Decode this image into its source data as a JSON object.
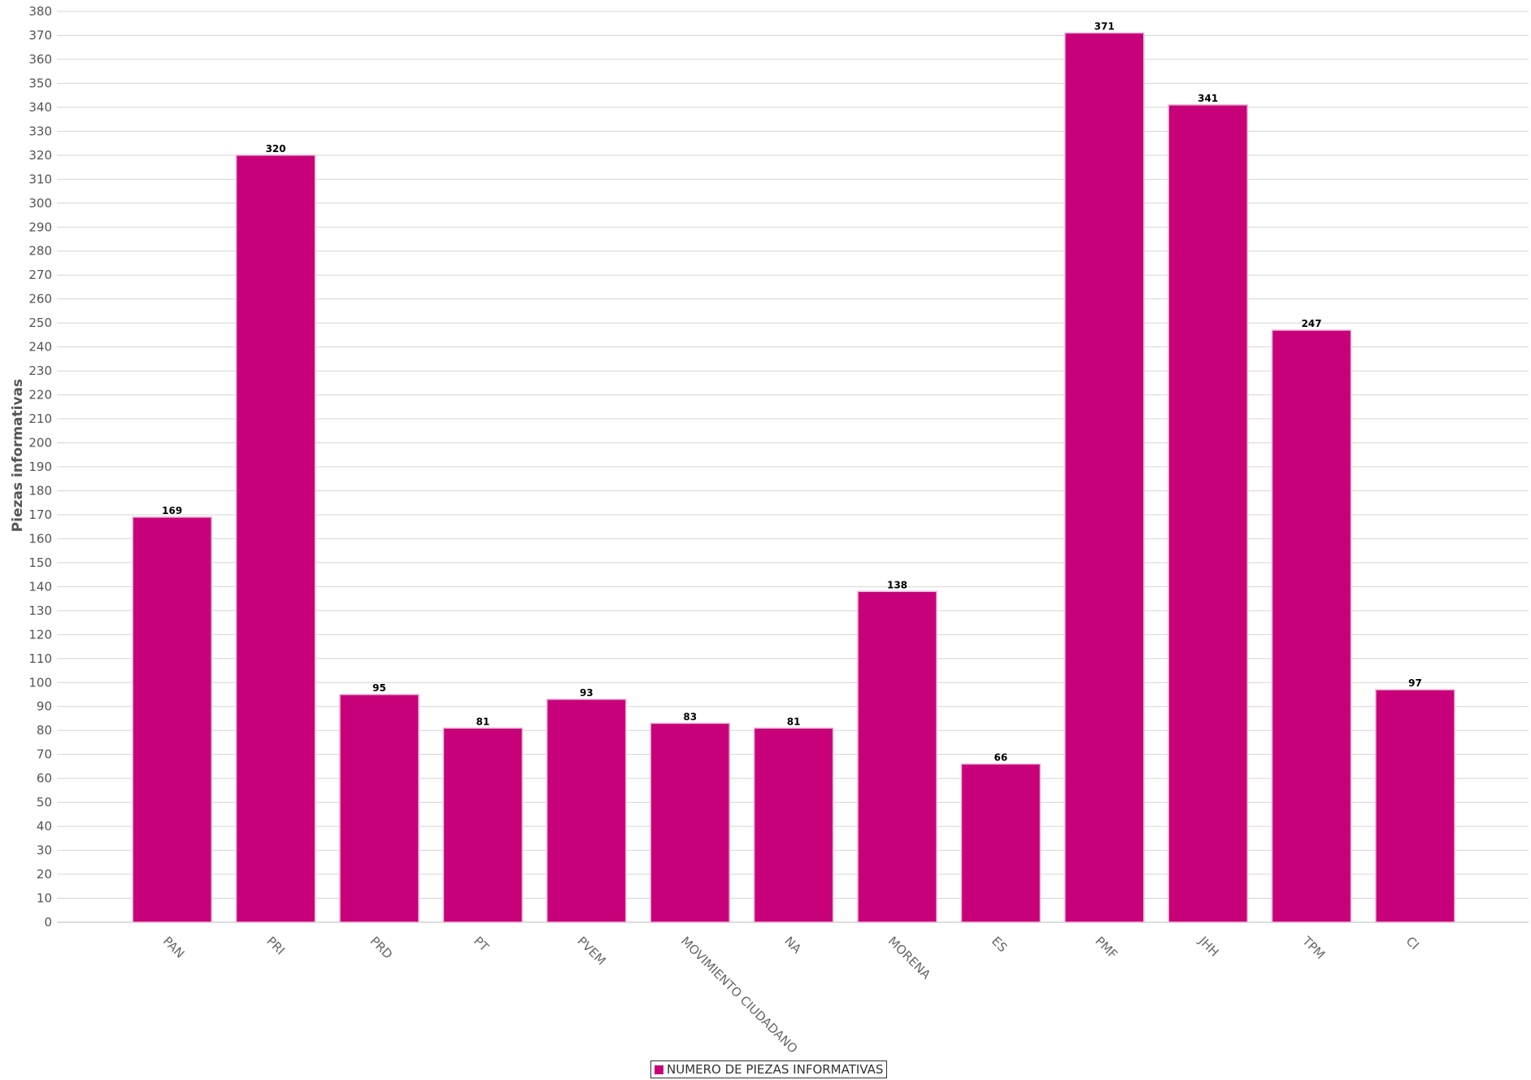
{
  "chart_data": {
    "type": "bar",
    "categories": [
      "PAN",
      "PRI",
      "PRD",
      "PT",
      "PVEM",
      "MOVIMIENTO CIUDADANO",
      "NA",
      "MORENA",
      "ES",
      "PMF",
      "JHH",
      "TPM",
      "CI"
    ],
    "series": [
      {
        "name": "NUMERO DE PIEZAS INFORMATIVAS",
        "color": "#c8007a",
        "values": [
          169,
          320,
          95,
          81,
          93,
          83,
          81,
          138,
          66,
          371,
          341,
          247,
          97
        ]
      }
    ],
    "title": "",
    "xlabel": "",
    "ylabel": "Piezas informativas",
    "ylim": [
      0,
      380
    ],
    "ytick_step": 10,
    "grid": true,
    "legend": "bottom-center",
    "data_labels": true
  }
}
